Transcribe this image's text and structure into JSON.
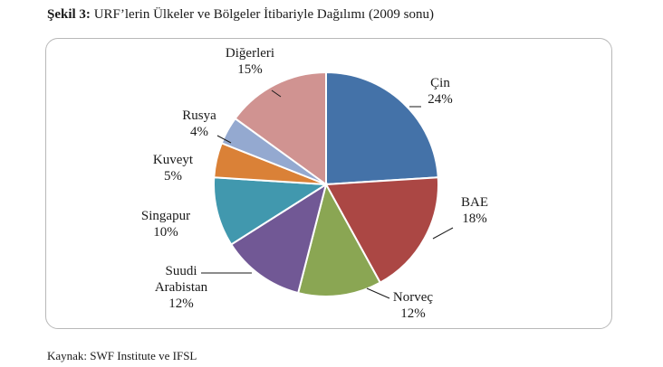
{
  "figure": {
    "prefix": "Şekil 3:",
    "title": " URF’lerin Ülkeler ve Bölgeler İtibariyle Dağılımı (2009 sonu)",
    "source": "Kaynak: SWF Institute ve IFSL"
  },
  "chart_data": {
    "type": "pie",
    "title": "URF’lerin Ülkeler ve Bölgeler İtibariyle Dağılımı (2009 sonu)",
    "unit": "%",
    "start": "12 o'clock",
    "direction": "clockwise",
    "slices": [
      {
        "label": "Çin",
        "value": 24,
        "display": "24%",
        "color": "#4472a8"
      },
      {
        "label": "BAE",
        "value": 18,
        "display": "18%",
        "color": "#ab4744"
      },
      {
        "label": "Norveç",
        "value": 12,
        "display": "12%",
        "color": "#8aa653"
      },
      {
        "label": "Suudi Arabistan",
        "value": 12,
        "display": "12%",
        "color": "#715895"
      },
      {
        "label": "Singapur",
        "value": 10,
        "display": "10%",
        "color": "#4198ae"
      },
      {
        "label": "Kuveyt",
        "value": 5,
        "display": "5%",
        "color": "#da8137"
      },
      {
        "label": "Rusya",
        "value": 4,
        "display": "4%",
        "color": "#94a9d0"
      },
      {
        "label": "Diğerleri",
        "value": 15,
        "display": "15%",
        "color": "#d09391"
      }
    ]
  }
}
